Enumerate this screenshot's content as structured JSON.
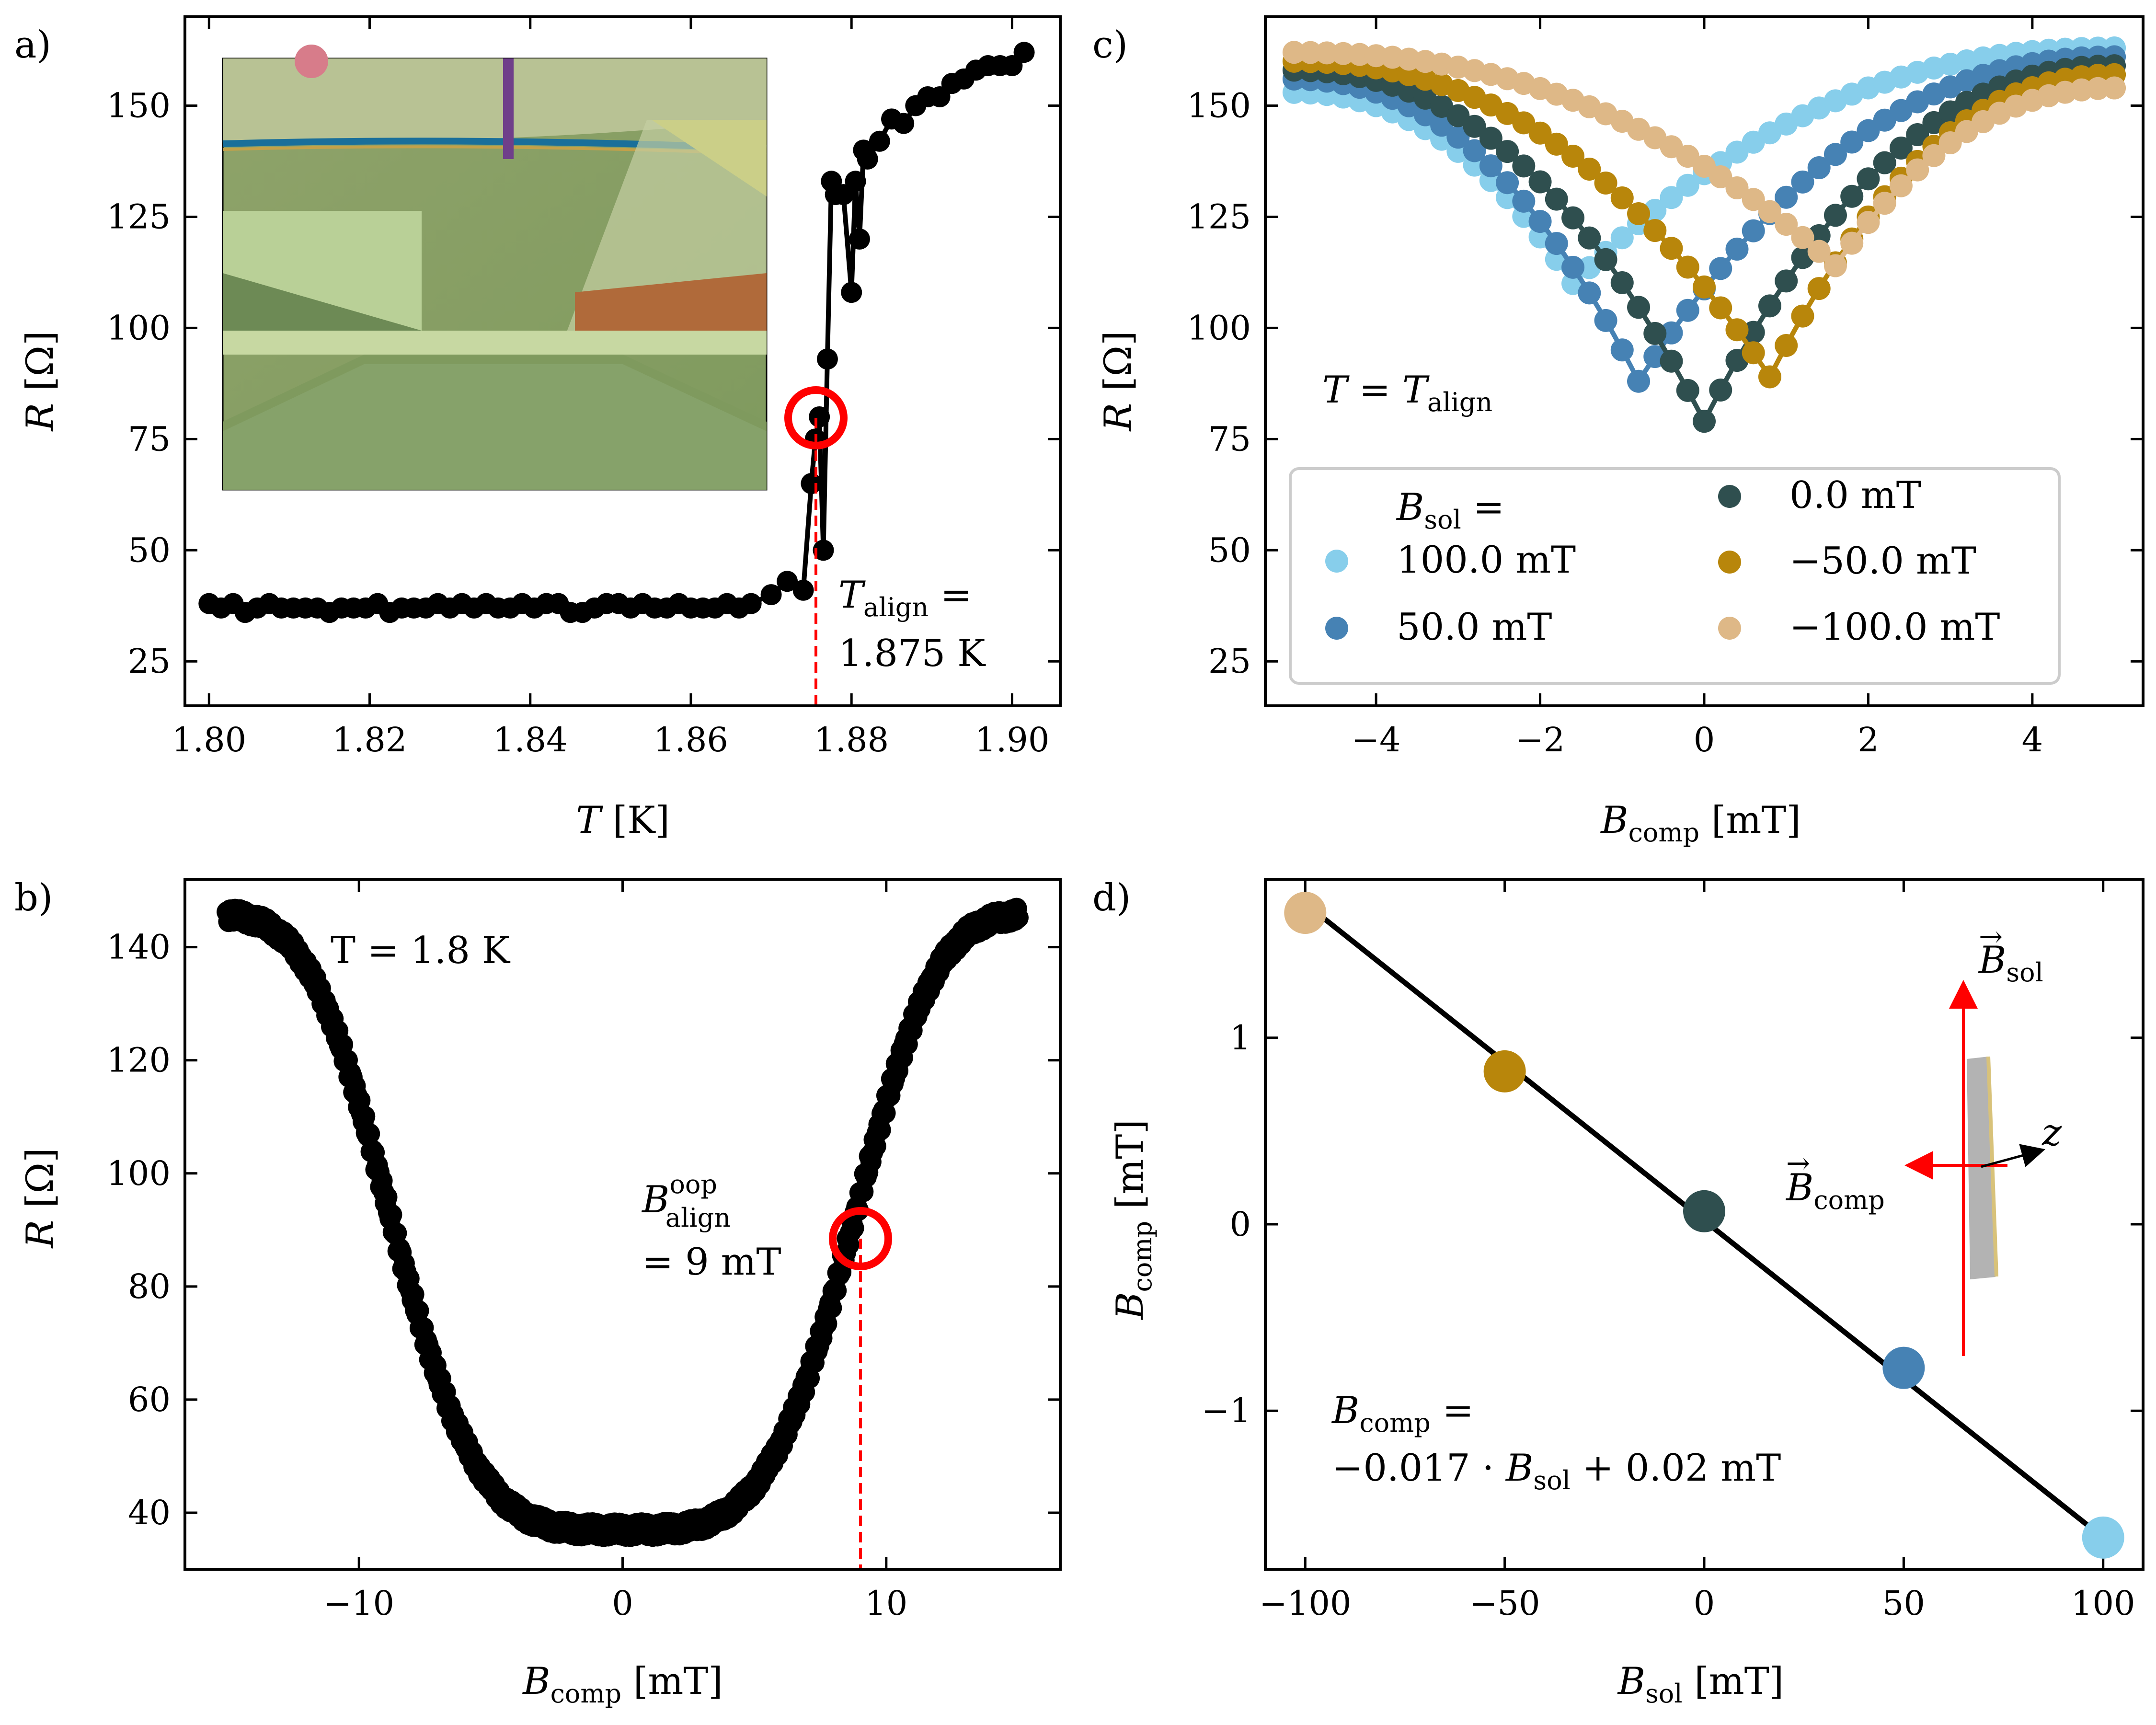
{
  "colors": {
    "black": "#000000",
    "red": "#ff0000",
    "c100": "#87ceeb",
    "c50": "#4682b4",
    "c0": "#2f4f4f",
    "cm50": "#b8860b",
    "cm100": "#deb887"
  },
  "panels": {
    "a": {
      "label": "a)",
      "ylabel_var": "R",
      "ylabel_unit": " [Ω]",
      "xlabel_var": "T",
      "xlabel_unit": " [K]",
      "annotation_var": "T",
      "annotation_sub": "align",
      "annotation_eq": " =",
      "annotation_value": "1.875 K",
      "inset": "optical-micrograph-of-device"
    },
    "b": {
      "label": "b)",
      "ylabel_var": "R",
      "ylabel_unit": " [Ω]",
      "xlabel_var": "B",
      "xlabel_sub": "comp",
      "xlabel_unit": " [mT]",
      "annotation_temp": "T = 1.8 K",
      "annotation_var": "B",
      "annotation_sup": "oop",
      "annotation_sub": "align",
      "annotation_value": "= 9 mT"
    },
    "c": {
      "label": "c)",
      "ylabel_var": "R",
      "ylabel_unit": " [Ω]",
      "xlabel_var": "B",
      "xlabel_sub": "comp",
      "xlabel_unit": " [mT]",
      "annotation_var": "T",
      "annotation_eq": " = ",
      "annotation_var2": "T",
      "annotation_sub": "align",
      "legend_title_var": "B",
      "legend_title_sub": "sol",
      "legend_title_eq": " ="
    },
    "d": {
      "label": "d)",
      "ylabel_var": "B",
      "ylabel_sub": "comp",
      "ylabel_unit": " [mT]",
      "xlabel_var": "B",
      "xlabel_sub": "sol",
      "xlabel_unit": " [mT]",
      "eq_line1_var": "B",
      "eq_line1_sub": "comp",
      "eq_line1_rest": " =",
      "eq_line2_pre": "−0.017 · ",
      "eq_line2_var": "B",
      "eq_line2_sub": "sol",
      "eq_line2_post": " + 0.02 mT",
      "diagram_bsol_var": "B",
      "diagram_bsol_sub": "sol",
      "diagram_bcomp_var": "B",
      "diagram_bcomp_sub": "comp",
      "diagram_z": "z"
    }
  },
  "chart_data": [
    {
      "panel": "a",
      "type": "line",
      "xlim": [
        1.797,
        1.906
      ],
      "ylim": [
        15,
        170
      ],
      "xticks": [
        1.8,
        1.82,
        1.84,
        1.86,
        1.88,
        1.9
      ],
      "xtick_labels": [
        "1.80",
        "1.82",
        "1.84",
        "1.86",
        "1.88",
        "1.90"
      ],
      "yticks": [
        25,
        50,
        75,
        100,
        125,
        150
      ],
      "ytick_labels": [
        "25",
        "50",
        "75",
        "100",
        "125",
        "150"
      ],
      "x": [
        1.8,
        1.8015,
        1.803,
        1.8045,
        1.806,
        1.8075,
        1.809,
        1.8105,
        1.812,
        1.8135,
        1.815,
        1.8165,
        1.818,
        1.8195,
        1.821,
        1.8225,
        1.824,
        1.8255,
        1.827,
        1.8285,
        1.83,
        1.8315,
        1.833,
        1.8345,
        1.836,
        1.8375,
        1.839,
        1.8405,
        1.842,
        1.8435,
        1.845,
        1.8465,
        1.848,
        1.8495,
        1.851,
        1.8525,
        1.854,
        1.8555,
        1.857,
        1.8585,
        1.86,
        1.8615,
        1.863,
        1.8645,
        1.866,
        1.8675,
        1.87,
        1.872,
        1.874,
        1.875,
        1.8755,
        1.876,
        1.8765,
        1.877,
        1.8775,
        1.878,
        1.879,
        1.88,
        1.8805,
        1.881,
        1.8815,
        1.882,
        1.8835,
        1.885,
        1.8865,
        1.888,
        1.8895,
        1.891,
        1.8925,
        1.894,
        1.8955,
        1.897,
        1.8985,
        1.9,
        1.9015
      ],
      "y": [
        38,
        37,
        38,
        36,
        37,
        38,
        37,
        37,
        37,
        37,
        36,
        37,
        37,
        37,
        38,
        36,
        37,
        37,
        37,
        38,
        37,
        38,
        37,
        38,
        37,
        37,
        38,
        37,
        38,
        38,
        36,
        36,
        37,
        38,
        38,
        37,
        38,
        37,
        37,
        38,
        37,
        37,
        37,
        38,
        37,
        38,
        40,
        43,
        41,
        65,
        75,
        80,
        50,
        93,
        133,
        130,
        130,
        108,
        133,
        120,
        140,
        138,
        142,
        147,
        146,
        150,
        152,
        152,
        155,
        156,
        158,
        159,
        159,
        159,
        162
      ]
    },
    {
      "panel": "b",
      "type": "scatter",
      "xlim": [
        -16.6,
        16.6
      ],
      "ylim": [
        30,
        152
      ],
      "xticks": [
        -10,
        0,
        10
      ],
      "xtick_labels": [
        "−10",
        "0",
        "10"
      ],
      "yticks": [
        40,
        60,
        80,
        100,
        120,
        140
      ],
      "ytick_labels": [
        "40",
        "60",
        "80",
        "100",
        "120",
        "140"
      ],
      "model": "R = 37 + 109 * (1 - exp(-(B/9.6)^4)), B from -15 to 15",
      "x": [
        -15,
        -14,
        -13,
        -12,
        -11,
        -10,
        -9,
        -8,
        -7,
        -6,
        -5,
        -4,
        -3,
        -2,
        -1,
        0,
        1,
        2,
        3,
        4,
        5,
        6,
        7,
        8,
        9,
        10,
        11,
        12,
        13,
        14,
        15
      ],
      "y": [
        146,
        142,
        137,
        130,
        120,
        108,
        94,
        78,
        63,
        51,
        43,
        39,
        37,
        37,
        37,
        37,
        37,
        37,
        37,
        39,
        43,
        51,
        63,
        78,
        94,
        108,
        120,
        130,
        137,
        142,
        146
      ]
    },
    {
      "panel": "c",
      "type": "scatter",
      "xlim": [
        -5.35,
        5.35
      ],
      "ylim": [
        15,
        170
      ],
      "xticks": [
        -4,
        -2,
        0,
        2,
        4
      ],
      "xtick_labels": [
        "−4",
        "−2",
        "0",
        "2",
        "4"
      ],
      "yticks": [
        25,
        50,
        75,
        100,
        125,
        150
      ],
      "ytick_labels": [
        "25",
        "50",
        "75",
        "100",
        "125",
        "150"
      ],
      "series": [
        {
          "name": "100.0 mT",
          "color_key": "c100",
          "min_x": -1.6,
          "min_y": 110,
          "left_end": 153,
          "right_end": 163
        },
        {
          "name": "50.0 mT",
          "color_key": "c50",
          "min_x": -0.8,
          "min_y": 88,
          "left_end": 156,
          "right_end": 161
        },
        {
          "name": "0.0 mT",
          "color_key": "c0",
          "min_x": 0.0,
          "min_y": 79,
          "left_end": 158,
          "right_end": 159
        },
        {
          "name": "−50.0 mT",
          "color_key": "cm50",
          "min_x": 0.8,
          "min_y": 89,
          "left_end": 160,
          "right_end": 157
        },
        {
          "name": "−100.0 mT",
          "color_key": "cm100",
          "min_x": 1.6,
          "min_y": 114,
          "left_end": 162,
          "right_end": 154
        }
      ]
    },
    {
      "panel": "d",
      "type": "scatter",
      "xlim": [
        -110,
        110
      ],
      "ylim": [
        -1.85,
        1.85
      ],
      "xticks": [
        -100,
        -50,
        0,
        50,
        100
      ],
      "xtick_labels": [
        "−100",
        "−50",
        "0",
        "50",
        "100"
      ],
      "yticks": [
        -1,
        0,
        1
      ],
      "ytick_labels": [
        "−1",
        "0",
        "1"
      ],
      "x": [
        -100,
        -50,
        0,
        50,
        100
      ],
      "y": [
        1.67,
        0.82,
        0.07,
        -0.77,
        -1.68
      ],
      "color_keys": [
        "cm100",
        "cm50",
        "c0",
        "c50",
        "c100"
      ],
      "fit_slope": -0.017,
      "fit_intercept": 0.02
    }
  ]
}
